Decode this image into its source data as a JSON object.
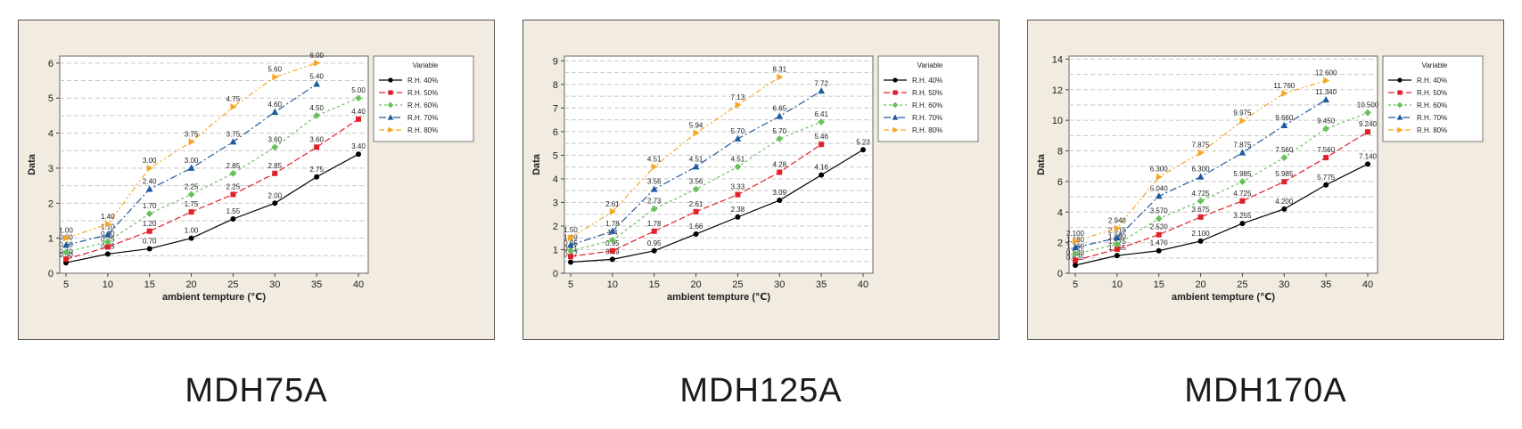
{
  "chart_data": [
    {
      "type": "line",
      "caption": "MDH75A",
      "xlabel": "ambient tempture (℃)",
      "ylabel": "Data",
      "xlim": [
        5,
        40
      ],
      "ylim": [
        0,
        6.2
      ],
      "yticks": [
        0,
        1,
        2,
        3,
        4,
        5,
        6
      ],
      "xticks": [
        5,
        10,
        15,
        20,
        25,
        30,
        35,
        40
      ],
      "grid": "horizontal dashed",
      "legend": {
        "title": "Variable",
        "placement": "top-right"
      },
      "series": [
        {
          "name": "R.H. 40%",
          "color": "#000000",
          "marker": "circle",
          "x": [
            5,
            10,
            15,
            20,
            25,
            30,
            35,
            40
          ],
          "values": [
            0.3,
            0.55,
            0.7,
            1.0,
            1.55,
            2.0,
            2.75,
            3.4
          ],
          "labels": [
            "0.30",
            "0.55",
            "0.70",
            "1.00",
            "1.55",
            "2.00",
            "2.75",
            "3.40"
          ]
        },
        {
          "name": "R.H. 50%",
          "color": "#e0202a",
          "marker": "square",
          "x": [
            5,
            10,
            15,
            20,
            25,
            30,
            35,
            40
          ],
          "values": [
            0.4,
            0.75,
            1.2,
            1.75,
            2.25,
            2.85,
            3.6,
            4.4
          ],
          "labels": [
            "0.40",
            "0.75",
            "1.20",
            "1.75",
            "2.25",
            "2.85",
            "3.60",
            "4.40"
          ]
        },
        {
          "name": "R.H. 60%",
          "color": "#66c159",
          "marker": "diamond",
          "x": [
            5,
            10,
            15,
            20,
            25,
            30,
            35,
            40
          ],
          "values": [
            0.6,
            0.9,
            1.7,
            2.25,
            2.85,
            3.6,
            4.5,
            5.0
          ],
          "labels": [
            "0.60",
            "0.90",
            "1.70",
            "2.25",
            "2.85",
            "3.60",
            "4.50",
            "5.00"
          ]
        },
        {
          "name": "R.H. 70%",
          "color": "#1f5a9e",
          "marker": "triangle",
          "x": [
            5,
            10,
            15,
            20,
            25,
            30,
            35
          ],
          "values": [
            0.8,
            1.1,
            2.4,
            3.0,
            3.75,
            4.6,
            5.4
          ],
          "labels": [
            "0.80",
            "1.10",
            "2.40",
            "3.00",
            "3.75",
            "4.60",
            "5.40"
          ]
        },
        {
          "name": "R.H. 80%",
          "color": "#f5a623",
          "marker": "triangle-right",
          "x": [
            5,
            10,
            15,
            20,
            25,
            30,
            35
          ],
          "values": [
            1.0,
            1.4,
            3.0,
            3.75,
            4.75,
            5.6,
            6.0
          ],
          "labels": [
            "1.00",
            "1.40",
            "3.00",
            "3.75",
            "4.75",
            "5.60",
            "6.00"
          ]
        }
      ]
    },
    {
      "type": "line",
      "caption": "MDH125A",
      "xlabel": "ambient tempture (℃)",
      "ylabel": "Data",
      "xlim": [
        5,
        40
      ],
      "ylim": [
        0,
        9.2
      ],
      "yticks": [
        0,
        1,
        2,
        3,
        4,
        5,
        6,
        7,
        8,
        9
      ],
      "xticks": [
        5,
        10,
        15,
        20,
        25,
        30,
        35,
        40
      ],
      "grid": "horizontal dashed",
      "legend": {
        "title": "Variable",
        "placement": "top-right"
      },
      "series": [
        {
          "name": "R.H. 40%",
          "color": "#000000",
          "marker": "circle",
          "x": [
            5,
            10,
            15,
            20,
            25,
            30,
            35,
            40
          ],
          "values": [
            0.47,
            0.59,
            0.95,
            1.66,
            2.38,
            3.09,
            4.16,
            5.23
          ],
          "labels": [
            "0.47",
            "0.59",
            "0.95",
            "1.66",
            "2.38",
            "3.09",
            "4.16",
            "5.23"
          ]
        },
        {
          "name": "R.H. 50%",
          "color": "#e0202a",
          "marker": "square",
          "x": [
            5,
            10,
            15,
            20,
            25,
            30,
            35
          ],
          "values": [
            0.71,
            0.95,
            1.78,
            2.61,
            3.33,
            4.28,
            5.46
          ],
          "labels": [
            "0.71",
            "0.95",
            "1.78",
            "2.61",
            "3.33",
            "4.28",
            "5.46"
          ]
        },
        {
          "name": "R.H. 60%",
          "color": "#66c159",
          "marker": "diamond",
          "x": [
            5,
            10,
            15,
            20,
            25,
            30,
            35
          ],
          "values": [
            0.95,
            1.4,
            2.73,
            3.56,
            4.51,
            5.7,
            6.41
          ],
          "labels": [
            "0.95",
            "1.4",
            "2.73",
            "3.56",
            "4.51",
            "5.70",
            "6.41"
          ]
        },
        {
          "name": "R.H. 70%",
          "color": "#1f5a9e",
          "marker": "triangle",
          "x": [
            5,
            10,
            15,
            20,
            25,
            30,
            35
          ],
          "values": [
            1.19,
            1.78,
            3.56,
            4.51,
            5.7,
            6.65,
            7.72
          ],
          "labels": [
            "1.19",
            "1.78",
            "3.56",
            "4.51",
            "5.70",
            "6.65",
            "7.72"
          ]
        },
        {
          "name": "R.H. 80%",
          "color": "#f5a623",
          "marker": "triangle-right",
          "x": [
            5,
            10,
            15,
            20,
            25,
            30
          ],
          "values": [
            1.5,
            2.61,
            4.51,
            5.94,
            7.13,
            8.31
          ],
          "labels": [
            "1.50",
            "2.61",
            "4.51",
            "5.94",
            "7.13",
            "8.31"
          ]
        }
      ]
    },
    {
      "type": "line",
      "caption": "MDH170A",
      "xlabel": "ambient tempture (℃)",
      "ylabel": "Data",
      "xlim": [
        5,
        40
      ],
      "ylim": [
        0,
        14.2
      ],
      "yticks": [
        0,
        2,
        4,
        6,
        8,
        10,
        12,
        14
      ],
      "xticks": [
        5,
        10,
        15,
        20,
        25,
        30,
        35,
        40
      ],
      "grid": "horizontal dashed",
      "legend": {
        "title": "Variable",
        "placement": "top-right"
      },
      "series": [
        {
          "name": "R.H. 40%",
          "color": "#000000",
          "marker": "circle",
          "x": [
            5,
            10,
            15,
            20,
            25,
            30,
            35,
            40
          ],
          "values": [
            0.525,
            1.155,
            1.47,
            2.1,
            3.255,
            4.2,
            5.775,
            7.14
          ],
          "labels": [
            "0.525",
            "1.155",
            "1.470",
            "2.100",
            "3.255",
            "4.200",
            "5.775",
            "7.140"
          ]
        },
        {
          "name": "R.H. 50%",
          "color": "#e0202a",
          "marker": "square",
          "x": [
            5,
            10,
            15,
            20,
            25,
            30,
            35,
            40
          ],
          "values": [
            0.84,
            1.575,
            2.52,
            3.675,
            4.725,
            5.985,
            7.56,
            9.24
          ],
          "labels": [
            "0.840",
            "1.575",
            "2.520",
            "3.675",
            "4.725",
            "5.985",
            "7.560",
            "9.240"
          ]
        },
        {
          "name": "R.H. 60%",
          "color": "#66c159",
          "marker": "diamond",
          "x": [
            5,
            10,
            15,
            20,
            25,
            30,
            35,
            40
          ],
          "values": [
            1.26,
            1.89,
            3.57,
            4.725,
            5.985,
            7.56,
            9.45,
            10.5
          ],
          "labels": [
            "1.260",
            "1.890",
            "3.570",
            "4.725",
            "5.985",
            "7.560",
            "9.450",
            "10.500"
          ]
        },
        {
          "name": "R.H. 70%",
          "color": "#1f5a9e",
          "marker": "triangle",
          "x": [
            5,
            10,
            15,
            20,
            25,
            30,
            35
          ],
          "values": [
            1.68,
            2.31,
            5.04,
            6.3,
            7.875,
            9.66,
            11.34
          ],
          "labels": [
            "1.680",
            "2.310",
            "5.040",
            "6.300",
            "7.875",
            "9.660",
            "11.340"
          ]
        },
        {
          "name": "R.H. 80%",
          "color": "#f5a623",
          "marker": "triangle-right",
          "x": [
            5,
            10,
            15,
            20,
            25,
            30,
            35
          ],
          "values": [
            2.1,
            2.94,
            6.3,
            7.875,
            9.975,
            11.76,
            12.6
          ],
          "labels": [
            "2.100",
            "2.940",
            "6.300",
            "7.875",
            "9.975",
            "11.760",
            "12.600"
          ]
        }
      ]
    }
  ]
}
